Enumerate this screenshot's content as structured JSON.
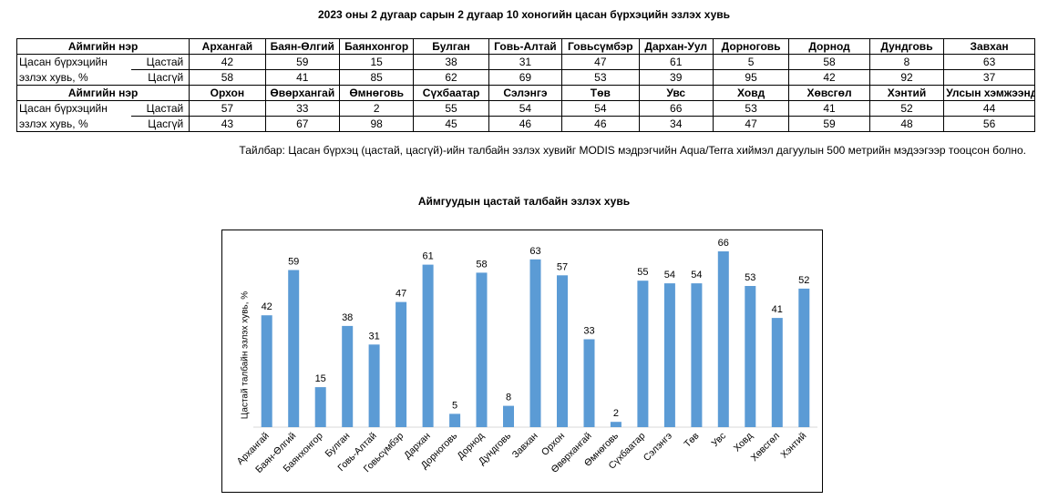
{
  "title": "2023 оны 2 дугаар сарын 2 дугаар 10 хоногийн цасан бүрхэцийн эзлэх хувь",
  "table": {
    "header_label": "Аймгийн нэр",
    "row_label_1": "Цасан бүрхэцийн",
    "row_label_2": "эзлэх хувь, %",
    "sub_1": "Цастай",
    "sub_2": "Цасгүй",
    "block1": {
      "names": [
        "Архангай",
        "Баян-Өлгий",
        "Баянхонгор",
        "Булган",
        "Говь-Алтай",
        "Говьсүмбэр",
        "Дархан-Уул",
        "Дорноговь",
        "Дорнод",
        "Дундговь",
        "Завхан"
      ],
      "snow": [
        "42",
        "59",
        "15",
        "38",
        "31",
        "47",
        "61",
        "5",
        "58",
        "8",
        "63"
      ],
      "nosnow": [
        "58",
        "41",
        "85",
        "62",
        "69",
        "53",
        "39",
        "95",
        "42",
        "92",
        "37"
      ]
    },
    "block2": {
      "names": [
        "Орхон",
        "Өвөрхангай",
        "Өмнөговь",
        "Сүхбаатар",
        "Сэлэнгэ",
        "Төв",
        "Увс",
        "Ховд",
        "Хөвсгөл",
        "Хэнтий",
        "Улсын хэмжээнд"
      ],
      "snow": [
        "57",
        "33",
        "2",
        "55",
        "54",
        "54",
        "66",
        "53",
        "41",
        "52",
        "44"
      ],
      "nosnow": [
        "43",
        "67",
        "98",
        "45",
        "46",
        "46",
        "34",
        "47",
        "59",
        "48",
        "56"
      ]
    }
  },
  "note": "Тайлбар: Цасан бүрхэц (цастай, цасгүй)-ийн талбайн эзлэх хувийг MODIS мэдрэгчийн Aqua/Terra хиймэл дагуулын 500 метрийн мэдээгээр тооцсон болно.",
  "chart_title": "Аймгуудын цастай талбайн эзлэх хувь",
  "colors": {
    "bar": "#5b9bd5",
    "axis": "#d9d9d9"
  },
  "chart_data": {
    "type": "bar",
    "title": "Аймгуудын цастай талбайн эзлэх хувь",
    "xlabel": "",
    "ylabel": "Цастай талбайн эзлэх хувь, %",
    "categories": [
      "Архангай",
      "Баян-Өлгий",
      "Баянхонгор",
      "Булган",
      "Говь-Алтай",
      "Говьсүмбэр",
      "Дархан",
      "Дорноговь",
      "Дорнод",
      "Дундговь",
      "Завхан",
      "Орхон",
      "Өвөрхангай",
      "Өмнөговь",
      "Сүхбаатар",
      "Сэлэнгэ",
      "Төв",
      "Увс",
      "Ховд",
      "Хөвсгөл",
      "Хэнтий"
    ],
    "values": [
      42,
      59,
      15,
      38,
      31,
      47,
      61,
      5,
      58,
      8,
      63,
      57,
      33,
      2,
      55,
      54,
      54,
      66,
      53,
      41,
      52
    ],
    "ylim": [
      0,
      70
    ],
    "grid": false,
    "data_labels": true
  }
}
